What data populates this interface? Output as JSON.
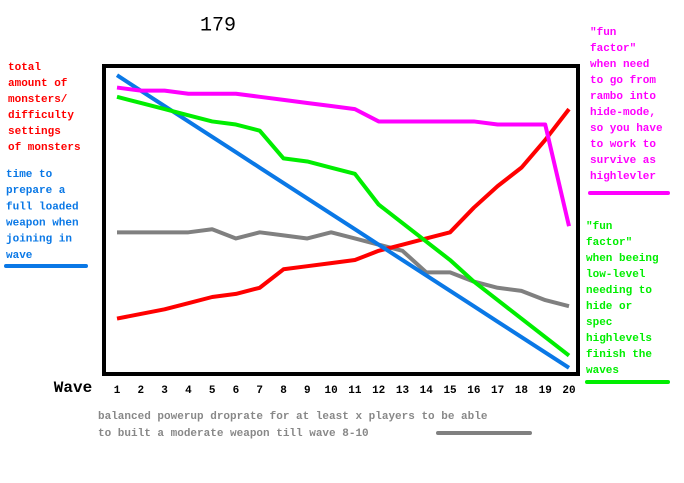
{
  "chart_data": {
    "type": "line",
    "title": "179",
    "x_label": "Wave",
    "categories": [
      "1",
      "2",
      "3",
      "4",
      "5",
      "6",
      "7",
      "8",
      "9",
      "10",
      "11",
      "12",
      "13",
      "14",
      "15",
      "16",
      "17",
      "18",
      "19",
      "20"
    ],
    "ylim": [
      0,
      100
    ],
    "series": [
      {
        "name": [
          "total",
          "amount of",
          "monsters/",
          "difficulty",
          "settings",
          "of monsters"
        ],
        "color": "#ff0000",
        "values": [
          18,
          19.5,
          21,
          23,
          25,
          26,
          28,
          34,
          35,
          36,
          37,
          40,
          42,
          44,
          46,
          54,
          61,
          67,
          76,
          86
        ]
      },
      {
        "name": [
          "time to",
          "prepare a",
          "full loaded",
          "weapon when",
          "joining in",
          "wave"
        ],
        "color": "#0a78e6",
        "values": [
          97,
          92,
          87,
          82,
          77,
          72,
          67,
          62,
          57,
          52,
          47,
          42,
          37,
          32,
          27,
          22,
          17,
          12,
          7,
          2
        ]
      },
      {
        "name": [
          "\"fun",
          "factor\"",
          "when need",
          "to go from",
          "rambo into",
          "hide-mode,",
          "so you have",
          "to work to",
          "survive as",
          "highlevler"
        ],
        "color": "#ff00ff",
        "values": [
          93,
          92,
          92,
          91,
          91,
          91,
          90,
          89,
          88,
          87,
          86,
          82,
          82,
          82,
          82,
          82,
          81,
          81,
          81,
          48
        ]
      },
      {
        "name": [
          "\"fun",
          "factor\"",
          "when beeing",
          "low-level",
          "needing to",
          "hide or",
          "spec",
          "highlevels",
          "finish the",
          "waves"
        ],
        "color": "#00ee00",
        "values": [
          90,
          88,
          86,
          84,
          82,
          81,
          79,
          70,
          69,
          67,
          65,
          55,
          49,
          43,
          37,
          30,
          24,
          18,
          12,
          6
        ]
      },
      {
        "name": [
          "balanced powerup droprate for at least x players to be able",
          "to built a moderate weapon till wave 8-10"
        ],
        "color": "#808080",
        "values": [
          46,
          46,
          46,
          46,
          47,
          44,
          46,
          45,
          44,
          46,
          44,
          42,
          40,
          33,
          33,
          30,
          28,
          27,
          24,
          22
        ]
      }
    ]
  }
}
